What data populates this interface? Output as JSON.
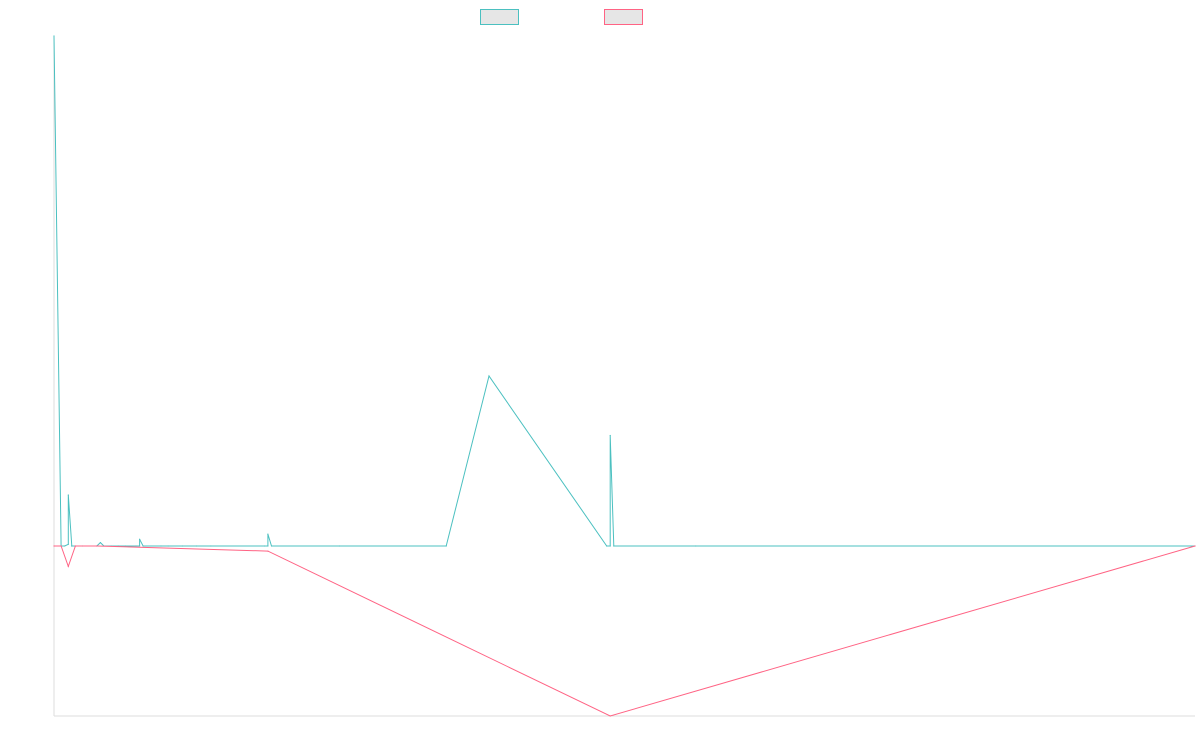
{
  "chart_data": {
    "type": "line",
    "title": "",
    "xlabel": "",
    "ylabel": "",
    "grid": false,
    "legend_position": "top-center",
    "xlim": [
      0,
      160
    ],
    "ylim": [
      -1.0,
      3.0
    ],
    "series": [
      {
        "color": "#4bc0c0",
        "points": [
          [
            0,
            3.0
          ],
          [
            1,
            0.0
          ],
          [
            2,
            0.01
          ],
          [
            2.5,
            0.0
          ],
          [
            3,
            0.0
          ],
          [
            4,
            0.0
          ],
          [
            6,
            0.0
          ],
          [
            6.5,
            0.02
          ],
          [
            7,
            0.0
          ],
          [
            8,
            0.0
          ],
          [
            9,
            0.0
          ],
          [
            10,
            0.0
          ],
          [
            12,
            0.0
          ],
          [
            15,
            0.0
          ],
          [
            16,
            0.0
          ],
          [
            18,
            0.0
          ],
          [
            20,
            0.0
          ],
          [
            22,
            0.0
          ],
          [
            30,
            0.0
          ],
          [
            40,
            0.0
          ],
          [
            55,
            0.0
          ],
          [
            61,
            1.0
          ],
          [
            78,
            0.0
          ],
          [
            90,
            0.0
          ],
          [
            160,
            0.0
          ]
        ],
        "spikes": [
          [
            2,
            0.3
          ],
          [
            12,
            0.04
          ],
          [
            30,
            0.07
          ],
          [
            78,
            0.65
          ]
        ]
      },
      {
        "color": "#ff6384",
        "points": [
          [
            0,
            0.0
          ],
          [
            1,
            0.0
          ],
          [
            2,
            -0.12
          ],
          [
            3,
            0.0
          ],
          [
            6,
            0.0
          ],
          [
            30,
            -0.03
          ],
          [
            78,
            -1.0
          ],
          [
            160,
            0.0
          ]
        ]
      }
    ]
  },
  "legend": [
    {
      "color": "#4bc0c0"
    },
    {
      "color": "#ff6384"
    }
  ]
}
